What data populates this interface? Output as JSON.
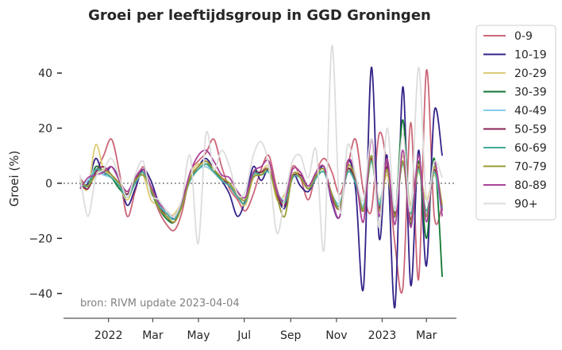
{
  "chart_data": {
    "type": "line",
    "title": "Groei per leeftijdsgroup in GGD Groningen",
    "xlabel": "",
    "ylabel": "Groei (%)",
    "ylim": [
      -49,
      55
    ],
    "y_ticks": [
      {
        "value": 40,
        "label": "40"
      },
      {
        "value": 20,
        "label": "20"
      },
      {
        "value": 0,
        "label": "0"
      },
      {
        "value": -20,
        "label": "−20"
      },
      {
        "value": -40,
        "label": "−40"
      }
    ],
    "x_start": "2021-11-24",
    "x_end": "2023-03-22",
    "xlim": [
      "2021-11-02",
      "2023-04-10"
    ],
    "x_ticks": [
      {
        "date": "2022-01-01",
        "label": "2022"
      },
      {
        "date": "2022-03-01",
        "label": "Mar"
      },
      {
        "date": "2022-05-01",
        "label": "May"
      },
      {
        "date": "2022-07-01",
        "label": "Jul"
      },
      {
        "date": "2022-09-01",
        "label": "Sep"
      },
      {
        "date": "2022-11-01",
        "label": "Nov"
      },
      {
        "date": "2023-01-01",
        "label": "2023"
      },
      {
        "date": "2023-03-01",
        "label": "Mar"
      }
    ],
    "reference_line": {
      "y": 0,
      "style": "dotted",
      "color": "#888888"
    },
    "annotation": "bron: RIVM update 2023-04-04",
    "legend_position": "outside-right-top",
    "series": [
      {
        "name": "0-9",
        "color": "#CC6677",
        "values": [
          2,
          -1,
          4,
          10,
          16,
          4,
          -12,
          -3,
          6,
          -2,
          -10,
          -15,
          -17,
          -10,
          4,
          8,
          11,
          16,
          6,
          -2,
          -6,
          -10,
          -4,
          5,
          10,
          -2,
          -8,
          6,
          2,
          -6,
          4,
          9,
          4,
          -4,
          6,
          16,
          -3,
          -10,
          18,
          6,
          -22,
          -38,
          22,
          -35,
          41,
          -12,
          -8
        ]
      },
      {
        "name": "10-19",
        "color": "#332288",
        "values": [
          -1,
          0,
          9,
          3,
          6,
          1,
          -8,
          -2,
          5,
          1,
          -7,
          -10,
          -13,
          -8,
          2,
          6,
          9,
          5,
          1,
          -4,
          -12,
          -6,
          6,
          1,
          5,
          -4,
          -9,
          3,
          -1,
          -3,
          2,
          6,
          -7,
          -12,
          8,
          -2,
          -38,
          42,
          -20,
          10,
          -45,
          35,
          -37,
          12,
          -30,
          26,
          10
        ]
      },
      {
        "name": "20-29",
        "color": "#DDCC77",
        "values": [
          1,
          -2,
          14,
          5,
          3,
          -1,
          -6,
          0,
          3,
          -6,
          -8,
          -12,
          -11,
          -6,
          3,
          7,
          6,
          4,
          2,
          0,
          -4,
          -8,
          2,
          4,
          6,
          -6,
          -4,
          2,
          4,
          -2,
          3,
          5,
          -5,
          -8,
          6,
          2,
          -9,
          8,
          -6,
          3,
          -10,
          10,
          -8,
          4,
          -6,
          3,
          -8
        ]
      },
      {
        "name": "30-39",
        "color": "#117733",
        "values": [
          0,
          -1,
          6,
          4,
          2,
          -2,
          -4,
          1,
          4,
          -3,
          -9,
          -13,
          -14,
          -7,
          2,
          5,
          7,
          5,
          1,
          -1,
          -5,
          -7,
          4,
          3,
          4,
          -3,
          -7,
          2,
          2,
          -2,
          2,
          4,
          -4,
          -8,
          5,
          0,
          -10,
          10,
          -8,
          6,
          -12,
          23,
          -15,
          8,
          -20,
          9,
          -34
        ]
      },
      {
        "name": "40-49",
        "color": "#88CCEE",
        "values": [
          -1,
          1,
          5,
          3,
          2,
          -1,
          -5,
          0,
          3,
          -2,
          -7,
          -11,
          -12,
          -6,
          1,
          5,
          6,
          4,
          1,
          -1,
          -4,
          -6,
          3,
          3,
          4,
          -3,
          -6,
          2,
          2,
          -2,
          2,
          4,
          -4,
          -7,
          4,
          0,
          -8,
          8,
          -7,
          5,
          -9,
          7,
          -10,
          5,
          -11,
          4,
          -12
        ]
      },
      {
        "name": "50-59",
        "color": "#882255",
        "values": [
          0,
          -2,
          4,
          6,
          3,
          0,
          -4,
          1,
          4,
          -2,
          -8,
          -12,
          -14,
          -7,
          2,
          6,
          8,
          5,
          2,
          -1,
          -5,
          -7,
          3,
          4,
          5,
          -4,
          -8,
          2,
          3,
          -1,
          3,
          5,
          -5,
          -9,
          5,
          1,
          -10,
          9,
          -9,
          6,
          -11,
          8,
          -13,
          6,
          -12,
          5,
          -10
        ]
      },
      {
        "name": "60-69",
        "color": "#44AA99",
        "values": [
          0,
          -1,
          5,
          4,
          2,
          -1,
          -5,
          0,
          4,
          -2,
          -8,
          -11,
          -13,
          -7,
          1,
          5,
          7,
          4,
          1,
          -1,
          -5,
          -7,
          3,
          3,
          4,
          -3,
          -7,
          2,
          2,
          -2,
          2,
          4,
          -4,
          -8,
          4,
          0,
          -9,
          8,
          -8,
          5,
          -10,
          7,
          -11,
          5,
          -10,
          4,
          -9
        ]
      },
      {
        "name": "70-79",
        "color": "#999933",
        "values": [
          1,
          -1,
          3,
          5,
          3,
          0,
          -3,
          1,
          3,
          -2,
          -9,
          -12,
          -14,
          -8,
          2,
          6,
          8,
          5,
          2,
          0,
          -4,
          -6,
          2,
          3,
          5,
          -5,
          -12,
          3,
          2,
          -2,
          3,
          5,
          -4,
          -9,
          6,
          2,
          -10,
          10,
          -10,
          5,
          -12,
          8,
          -14,
          7,
          -12,
          6,
          -8
        ]
      },
      {
        "name": "80-89",
        "color": "#AA4499",
        "values": [
          -2,
          2,
          3,
          4,
          6,
          1,
          -3,
          2,
          5,
          -1,
          -7,
          -10,
          -12,
          -6,
          4,
          10,
          12,
          8,
          3,
          2,
          -3,
          -5,
          4,
          6,
          8,
          -3,
          -6,
          5,
          4,
          -1,
          4,
          6,
          -6,
          -12,
          8,
          3,
          -14,
          16,
          -12,
          9,
          -15,
          12,
          -16,
          10,
          -14,
          8,
          -12
        ]
      },
      {
        "name": "90+",
        "color": "#DDDDDD",
        "values": [
          3,
          -12,
          2,
          5,
          9,
          2,
          -5,
          3,
          8,
          -4,
          -6,
          -10,
          -12,
          -5,
          10,
          -22,
          18,
          5,
          12,
          6,
          -4,
          -3,
          10,
          15,
          6,
          -18,
          -5,
          8,
          10,
          2,
          12,
          -24,
          50,
          -10,
          14,
          3,
          -6,
          16,
          -16,
          20,
          -10,
          18,
          -10,
          42,
          -6,
          8,
          2
        ]
      }
    ]
  }
}
